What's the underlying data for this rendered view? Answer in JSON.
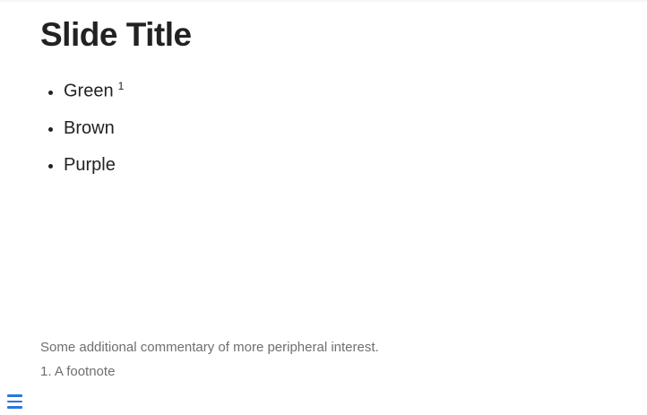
{
  "slide": {
    "title": "Slide Title",
    "bullets": [
      {
        "text": "Green",
        "footnote_ref": "1"
      },
      {
        "text": "Brown",
        "footnote_ref": ""
      },
      {
        "text": "Purple",
        "footnote_ref": ""
      }
    ],
    "aside": "Some additional commentary of more peripheral interest.",
    "footnote": "1. A footnote"
  },
  "controls": {
    "menu_icon": "hamburger-menu"
  },
  "colors": {
    "text": "#222222",
    "muted": "#6f6f6f",
    "accent": "#2a76dd",
    "top_strip": "#f5f5f6",
    "background": "#ffffff"
  }
}
